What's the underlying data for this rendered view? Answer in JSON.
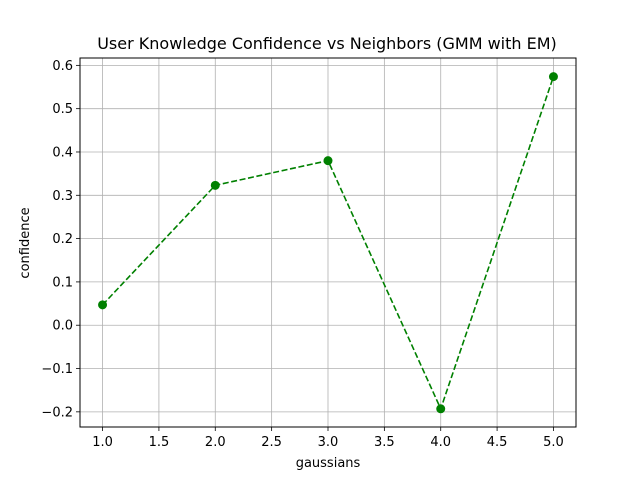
{
  "chart_data": {
    "type": "line",
    "title": "User Knowledge Confidence vs Neighbors (GMM with EM)",
    "xlabel": "gaussians",
    "ylabel": "confidence",
    "x": [
      1.0,
      2.0,
      3.0,
      4.0,
      5.0
    ],
    "series": [
      {
        "values": [
          0.047,
          0.323,
          0.38,
          -0.193,
          0.574
        ],
        "color": "#008000",
        "line_style": "dashed",
        "marker": "circle"
      }
    ],
    "xlim": [
      0.8,
      5.2
    ],
    "ylim": [
      -0.235,
      0.617
    ],
    "xticks": [
      1.0,
      1.5,
      2.0,
      2.5,
      3.0,
      3.5,
      4.0,
      4.5,
      5.0
    ],
    "xtick_labels": [
      "1.0",
      "1.5",
      "2.0",
      "2.5",
      "3.0",
      "3.5",
      "4.0",
      "4.5",
      "5.0"
    ],
    "yticks": [
      -0.2,
      -0.1,
      0.0,
      0.1,
      0.2,
      0.3,
      0.4,
      0.5,
      0.6
    ],
    "ytick_labels": [
      "−0.2",
      "−0.1",
      "0.0",
      "0.1",
      "0.2",
      "0.3",
      "0.4",
      "0.5",
      "0.6"
    ],
    "grid": true,
    "grid_color": "#b0b0b0"
  }
}
